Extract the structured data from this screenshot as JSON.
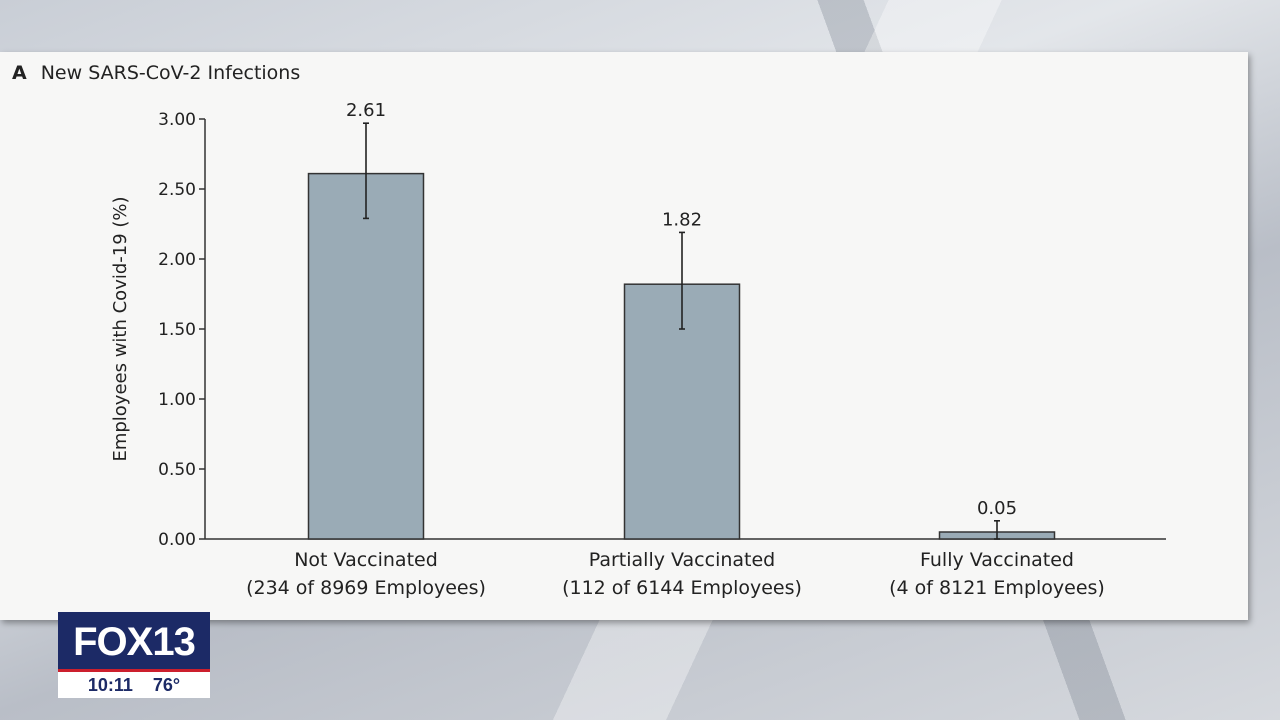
{
  "panel": {
    "letter": "A",
    "title": "New SARS-CoV-2 Infections"
  },
  "chart_data": {
    "type": "bar",
    "title": "New SARS-CoV-2 Infections",
    "ylabel": "Employees with Covid-19 (%)",
    "xlabel": "",
    "ylim": [
      0,
      3.0
    ],
    "yticks": [
      "0.00",
      "0.50",
      "1.00",
      "1.50",
      "2.00",
      "2.50",
      "3.00"
    ],
    "categories": [
      {
        "line1": "Not Vaccinated",
        "line2": "(234 of 8969 Employees)"
      },
      {
        "line1": "Partially Vaccinated",
        "line2": "(112 of 6144 Employees)"
      },
      {
        "line1": "Fully Vaccinated",
        "line2": "(4 of 8121 Employees)"
      }
    ],
    "values": [
      2.61,
      1.82,
      0.05
    ],
    "value_labels": [
      "2.61",
      "1.82",
      "0.05"
    ],
    "error_low": [
      2.29,
      1.5,
      0.0
    ],
    "error_high": [
      2.97,
      2.19,
      0.13
    ],
    "bar_color": "#9aabb6",
    "grid": false
  },
  "logo": {
    "name": "FOX 13",
    "brand": "FOX",
    "channel": "13",
    "time": "10:11",
    "temperature": "76°"
  }
}
